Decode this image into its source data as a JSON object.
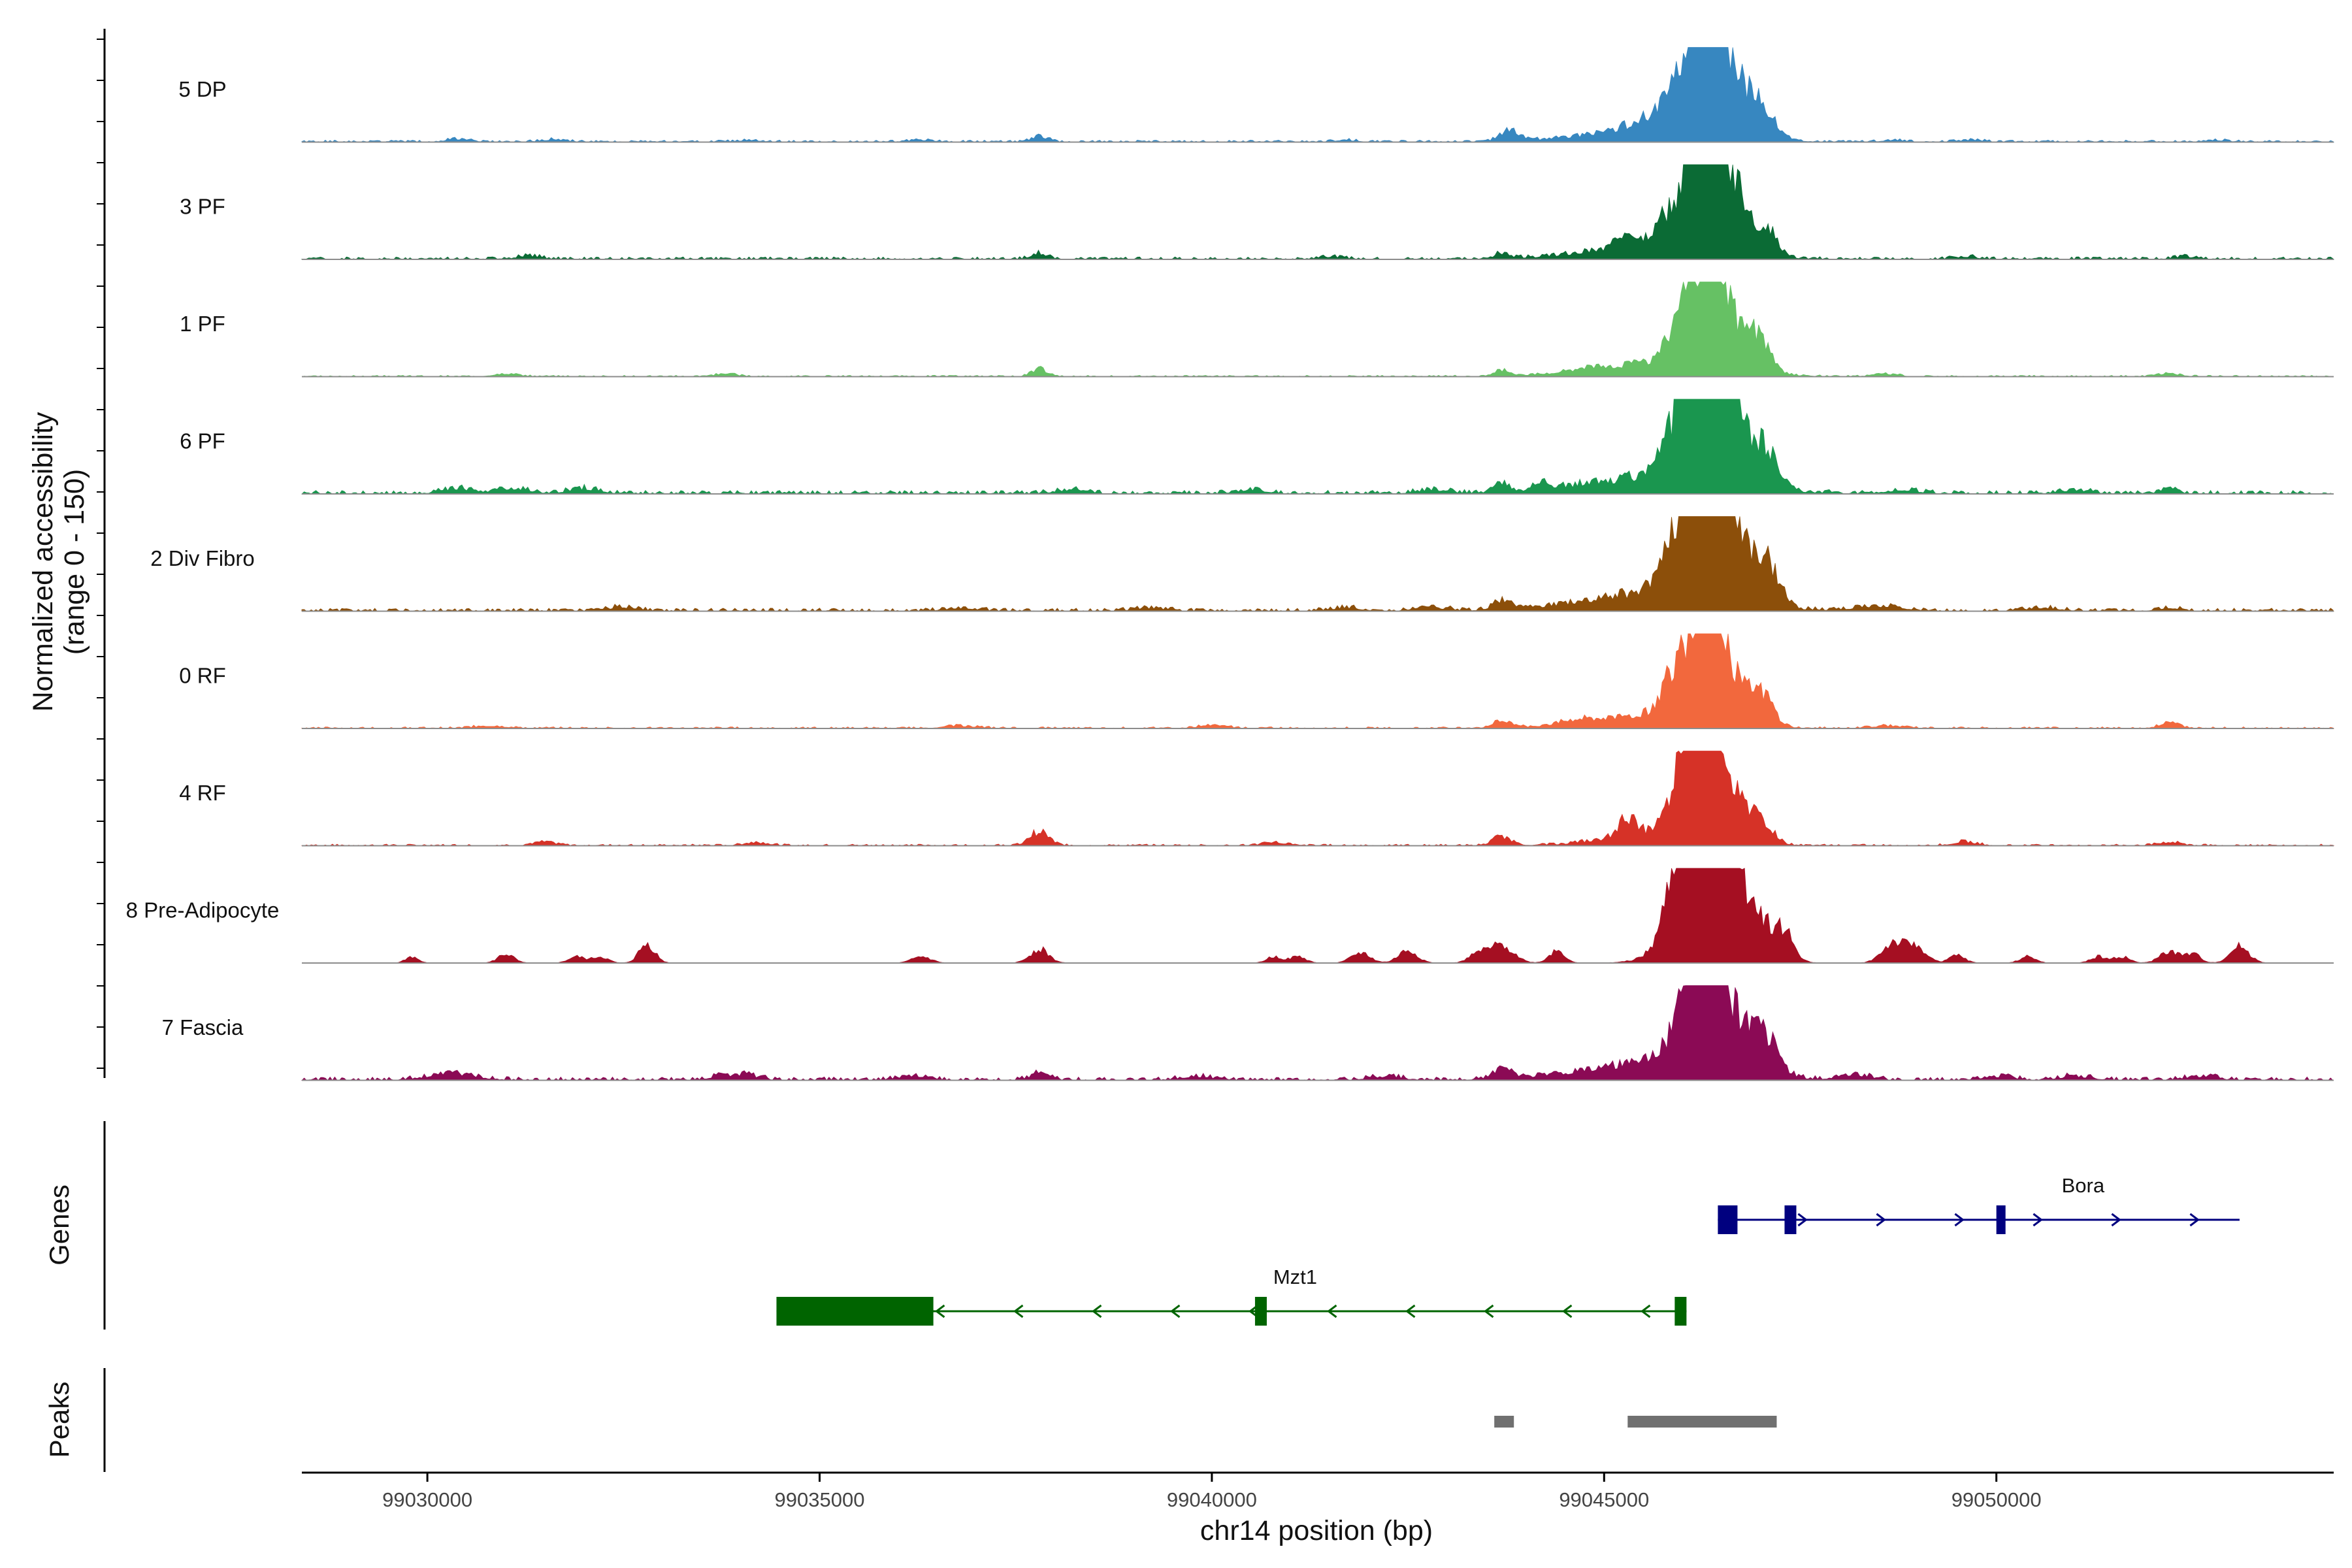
{
  "chart_data": {
    "type": "area",
    "title": "",
    "xlabel": "chr14 position (bp)",
    "ylabel_line1": "Normalized accessibility",
    "ylabel_line2": "(range 0 - 150)",
    "yrange": [
      0,
      150
    ],
    "xlim": [
      99028400,
      99054300
    ],
    "x_ticks": [
      {
        "value": 99030000,
        "label": "99030000"
      },
      {
        "value": 99035000,
        "label": "99035000"
      },
      {
        "value": 99040000,
        "label": "99040000"
      },
      {
        "value": 99045000,
        "label": "99045000"
      },
      {
        "value": 99050000,
        "label": "99050000"
      }
    ],
    "tracks": [
      {
        "label": "5 DP",
        "color": "#3787c0",
        "baseline": 14,
        "peaks": [
          [
            99045600,
            800,
            20
          ],
          [
            99046000,
            400,
            40
          ],
          [
            99046200,
            160,
            110
          ],
          [
            99046450,
            120,
            115
          ],
          [
            99046300,
            280,
            80
          ],
          [
            99046800,
            200,
            45
          ],
          [
            99047000,
            180,
            35
          ],
          [
            99043800,
            120,
            16
          ],
          [
            99037800,
            100,
            9
          ],
          [
            99030400,
            150,
            5
          ],
          [
            99031600,
            150,
            4
          ],
          [
            99034100,
            150,
            3
          ],
          [
            99036300,
            150,
            3
          ],
          [
            99041700,
            150,
            3
          ],
          [
            99048700,
            150,
            3
          ],
          [
            99049700,
            150,
            3
          ],
          [
            99052800,
            150,
            3
          ]
        ]
      },
      {
        "label": "3 PF",
        "color": "#0b6b35",
        "baseline": 18,
        "peaks": [
          [
            99045300,
            110,
            30
          ],
          [
            99045700,
            130,
            22
          ],
          [
            99045600,
            800,
            20
          ],
          [
            99046200,
            200,
            110
          ],
          [
            99046500,
            180,
            95
          ],
          [
            99046300,
            350,
            70
          ],
          [
            99046850,
            200,
            30
          ],
          [
            99047100,
            120,
            28
          ],
          [
            99037800,
            100,
            10
          ],
          [
            99043700,
            100,
            8
          ],
          [
            99031300,
            150,
            5
          ],
          [
            99041500,
            150,
            4
          ],
          [
            99049600,
            150,
            4
          ],
          [
            99052400,
            150,
            4
          ]
        ]
      },
      {
        "label": "1 PF",
        "color": "#66c164",
        "baseline": 10,
        "peaks": [
          [
            99045600,
            800,
            20
          ],
          [
            99046100,
            160,
            100
          ],
          [
            99046450,
            140,
            115
          ],
          [
            99046300,
            320,
            75
          ],
          [
            99046850,
            200,
            35
          ],
          [
            99047000,
            130,
            28
          ],
          [
            99037800,
            100,
            12
          ],
          [
            99043700,
            100,
            9
          ],
          [
            99031000,
            150,
            5
          ],
          [
            99033800,
            150,
            4
          ],
          [
            99048600,
            150,
            4
          ],
          [
            99052200,
            150,
            4
          ],
          [
            99044800,
            150,
            4
          ]
        ]
      },
      {
        "label": "6 PF",
        "color": "#1a964f",
        "baseline": 26,
        "peaks": [
          [
            99045600,
            900,
            25
          ],
          [
            99046000,
            180,
            70
          ],
          [
            99046250,
            200,
            105
          ],
          [
            99046500,
            180,
            105
          ],
          [
            99046350,
            400,
            60
          ],
          [
            99046900,
            200,
            40
          ],
          [
            99047100,
            130,
            30
          ],
          [
            99043700,
            100,
            14
          ],
          [
            99044200,
            100,
            14
          ],
          [
            99030400,
            200,
            8
          ],
          [
            99031100,
            200,
            8
          ],
          [
            99032000,
            200,
            8
          ],
          [
            99038200,
            200,
            6
          ],
          [
            99040500,
            200,
            6
          ],
          [
            99042800,
            200,
            6
          ],
          [
            99048800,
            200,
            6
          ],
          [
            99052200,
            100,
            10
          ],
          [
            99051000,
            200,
            6
          ]
        ]
      },
      {
        "label": "2 Div Fibro",
        "color": "#8c4f0a",
        "baseline": 22,
        "peaks": [
          [
            99045600,
            900,
            25
          ],
          [
            99046000,
            180,
            80
          ],
          [
            99046300,
            200,
            110
          ],
          [
            99046500,
            160,
            110
          ],
          [
            99046250,
            400,
            55
          ],
          [
            99046850,
            220,
            55
          ],
          [
            99047100,
            150,
            40
          ],
          [
            99043700,
            120,
            13
          ],
          [
            99048500,
            300,
            8
          ],
          [
            99032500,
            200,
            6
          ],
          [
            99036800,
            200,
            5
          ],
          [
            99039200,
            200,
            5
          ],
          [
            99041700,
            200,
            5
          ],
          [
            99042800,
            200,
            5
          ],
          [
            99050600,
            200,
            5
          ],
          [
            99052200,
            150,
            5
          ]
        ]
      },
      {
        "label": "0 RF",
        "color": "#f2683d",
        "baseline": 12,
        "peaks": [
          [
            99045500,
            700,
            20
          ],
          [
            99045800,
            120,
            30
          ],
          [
            99046150,
            180,
            95
          ],
          [
            99046450,
            140,
            110
          ],
          [
            99046300,
            300,
            70
          ],
          [
            99046850,
            200,
            35
          ],
          [
            99047050,
            130,
            28
          ],
          [
            99043700,
            120,
            12
          ],
          [
            99052200,
            120,
            9
          ],
          [
            99030800,
            200,
            4
          ],
          [
            99036800,
            200,
            4
          ],
          [
            99040000,
            200,
            4
          ],
          [
            99048600,
            200,
            4
          ],
          [
            99044600,
            200,
            5
          ]
        ]
      },
      {
        "label": "4 RF",
        "color": "#d63227",
        "baseline": 12,
        "peaks": [
          [
            99045300,
            110,
            30
          ],
          [
            99045600,
            600,
            18
          ],
          [
            99046100,
            180,
            110
          ],
          [
            99046400,
            160,
            125
          ],
          [
            99046300,
            300,
            80
          ],
          [
            99046800,
            200,
            30
          ],
          [
            99047050,
            130,
            22
          ],
          [
            99037800,
            120,
            22
          ],
          [
            99043700,
            120,
            14
          ],
          [
            99031500,
            150,
            5
          ],
          [
            99034200,
            150,
            5
          ],
          [
            99040800,
            150,
            5
          ],
          [
            99049600,
            150,
            6
          ],
          [
            99052200,
            150,
            5
          ]
        ]
      },
      {
        "label": "8 Pre-Adipocyte",
        "color": "#a50f22",
        "baseline": 0,
        "peaks": [
          [
            99045950,
            160,
            80
          ],
          [
            99046200,
            200,
            140
          ],
          [
            99046500,
            160,
            150
          ],
          [
            99046350,
            400,
            100
          ],
          [
            99046900,
            200,
            60
          ],
          [
            99047300,
            120,
            40
          ],
          [
            99032800,
            100,
            30
          ],
          [
            99031000,
            100,
            14
          ],
          [
            99029800,
            80,
            10
          ],
          [
            99031900,
            100,
            10
          ],
          [
            99032200,
            100,
            10
          ],
          [
            99036300,
            120,
            10
          ],
          [
            99037800,
            120,
            22
          ],
          [
            99040800,
            100,
            10
          ],
          [
            99041100,
            100,
            10
          ],
          [
            99041900,
            120,
            16
          ],
          [
            99042500,
            120,
            20
          ],
          [
            99043400,
            120,
            14
          ],
          [
            99043700,
            150,
            28
          ],
          [
            99044400,
            100,
            20
          ],
          [
            99048700,
            150,
            32
          ],
          [
            99049000,
            120,
            22
          ],
          [
            99049500,
            100,
            12
          ],
          [
            99050400,
            100,
            10
          ],
          [
            99051300,
            100,
            10
          ],
          [
            99051600,
            100,
            10
          ],
          [
            99052200,
            120,
            18
          ],
          [
            99052500,
            100,
            14
          ],
          [
            99053100,
            120,
            26
          ]
        ]
      },
      {
        "label": "7 Fascia",
        "color": "#8b0a55",
        "baseline": 24,
        "peaks": [
          [
            99045600,
            900,
            25
          ],
          [
            99046150,
            180,
            95
          ],
          [
            99046400,
            160,
            125
          ],
          [
            99046300,
            380,
            70
          ],
          [
            99046850,
            220,
            45
          ],
          [
            99047100,
            150,
            30
          ],
          [
            99043700,
            120,
            14
          ],
          [
            99037800,
            120,
            10
          ],
          [
            99030300,
            300,
            10
          ],
          [
            99033800,
            200,
            6
          ],
          [
            99034100,
            150,
            6
          ],
          [
            99036200,
            200,
            6
          ],
          [
            99039800,
            200,
            6
          ],
          [
            99042200,
            200,
            6
          ],
          [
            99048200,
            200,
            8
          ],
          [
            99050000,
            200,
            6
          ],
          [
            99051000,
            200,
            6
          ],
          [
            99052600,
            200,
            6
          ]
        ]
      }
    ],
    "genes_panel_title": "Genes",
    "genes": [
      {
        "name": "Bora",
        "strand": "+",
        "color": "#00007f",
        "start": 99046450,
        "end": 99053100,
        "exons": [
          [
            99046450,
            99046700
          ],
          [
            99047300,
            99047450
          ],
          [
            99050000,
            99050100
          ]
        ]
      },
      {
        "name": "Mzt1",
        "strand": "-",
        "color": "#006400",
        "start": 99034450,
        "end": 99046050,
        "exons": [
          [
            99034450,
            99036450
          ],
          [
            99040550,
            99040700
          ],
          [
            99045900,
            99046050
          ]
        ]
      }
    ],
    "peaks_panel_title": "Peaks",
    "peak_regions": [
      [
        99043600,
        99043850
      ],
      [
        99045300,
        99047200
      ]
    ],
    "peak_color": "#707070"
  }
}
